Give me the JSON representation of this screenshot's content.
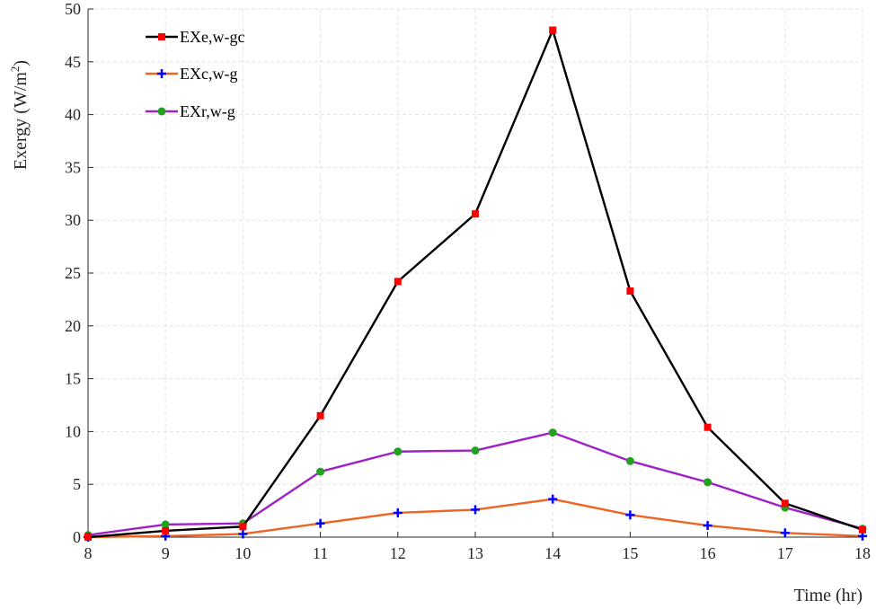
{
  "chart_data": {
    "type": "line",
    "title": "",
    "xlabel": "Time (hr)",
    "ylabel_main": "Exergy (W/m",
    "ylabel_sup": "2",
    "ylabel_tail": ")",
    "x": [
      8,
      9,
      10,
      11,
      12,
      13,
      14,
      15,
      16,
      17,
      18
    ],
    "xlim": [
      8,
      18
    ],
    "ylim": [
      0,
      50
    ],
    "xticks": [
      "8",
      "9",
      "10",
      "11",
      "12",
      "13",
      "14",
      "15",
      "16",
      "17",
      "18"
    ],
    "yticks": [
      "0",
      "5",
      "10",
      "15",
      "20",
      "25",
      "30",
      "35",
      "40",
      "45",
      "50"
    ],
    "grid": true,
    "legend_position": "top-left",
    "series": [
      {
        "name": "EXe,w-gc",
        "color": "#000000",
        "marker": "square",
        "marker_color": "#ff0000",
        "values": [
          0.0,
          0.6,
          1.0,
          11.5,
          24.2,
          30.6,
          48.0,
          23.3,
          10.4,
          3.2,
          0.7
        ]
      },
      {
        "name": "EXc,w-g",
        "color": "#f06422",
        "marker": "plus",
        "marker_color": "#0000ff",
        "values": [
          0.0,
          0.1,
          0.3,
          1.3,
          2.3,
          2.6,
          3.6,
          2.1,
          1.1,
          0.4,
          0.1
        ]
      },
      {
        "name": "EXr,w-g",
        "color": "#a020c8",
        "marker": "circle",
        "marker_color": "#22a022",
        "values": [
          0.2,
          1.2,
          1.3,
          6.2,
          8.1,
          8.2,
          9.9,
          7.2,
          5.2,
          2.8,
          0.8
        ]
      }
    ]
  }
}
